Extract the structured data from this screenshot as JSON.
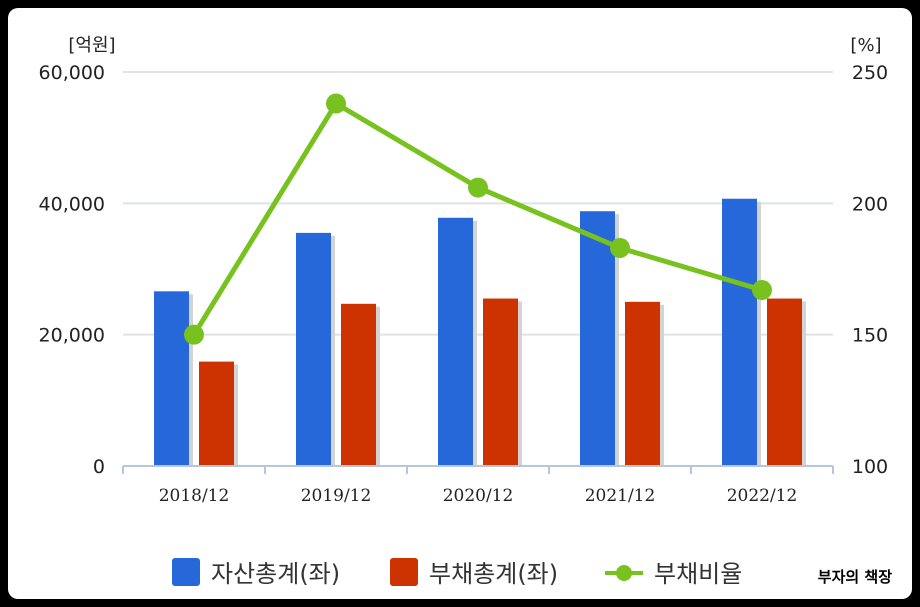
{
  "chart_data": {
    "type": "bar",
    "categories": [
      "2018/12",
      "2019/12",
      "2020/12",
      "2021/12",
      "2022/12"
    ],
    "series": [
      {
        "name": "자산총계(좌)",
        "type": "bar",
        "axis": "left",
        "color": "#2667d9",
        "values": [
          26600,
          35500,
          37800,
          38800,
          40700
        ]
      },
      {
        "name": "부채총계(좌)",
        "type": "bar",
        "axis": "left",
        "color": "#cc3300",
        "values": [
          15900,
          24700,
          25500,
          25000,
          25500
        ]
      },
      {
        "name": "부채비율",
        "type": "line",
        "axis": "right",
        "color": "#77c21e",
        "values": [
          150,
          238,
          206,
          183,
          167
        ]
      }
    ],
    "y_left": {
      "unit": "[억원]",
      "min": 0,
      "max": 60000,
      "ticks": [
        0,
        20000,
        40000,
        60000
      ],
      "tick_labels": [
        "0",
        "20,000",
        "40,000",
        "60,000"
      ]
    },
    "y_right": {
      "unit": "[%]",
      "min": 100,
      "max": 250,
      "ticks": [
        100,
        150,
        200,
        250
      ],
      "tick_labels": [
        "100",
        "150",
        "200",
        "250"
      ]
    },
    "grid": true,
    "legend_position": "bottom"
  },
  "watermark": "부자의 책장"
}
